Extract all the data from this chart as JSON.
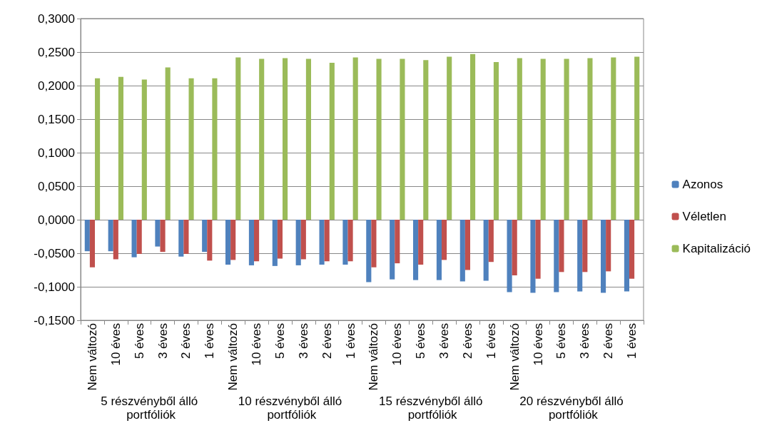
{
  "chart_data": {
    "type": "bar",
    "categories": [
      "Nem változó",
      "10 éves",
      "5 éves",
      "3 éves",
      "2 éves",
      "1 éves",
      "Nem változó",
      "10 éves",
      "5 éves",
      "3 éves",
      "2 éves",
      "1 éves",
      "Nem változó",
      "10 éves",
      "5 éves",
      "3 éves",
      "2 éves",
      "1 éves",
      "Nem változó",
      "10 éves",
      "5 éves",
      "3 éves",
      "2 éves",
      "1 éves"
    ],
    "annotations": [
      "5 részvényből álló portfóliók",
      "10 részvényből álló portfóliók",
      "15 részvényből álló portfóliók",
      "20 részvényből álló portfóliók"
    ],
    "series": [
      {
        "name": "Azonos",
        "color": "#4f81bd",
        "values": [
          -0.047,
          -0.047,
          -0.056,
          -0.04,
          -0.055,
          -0.048,
          -0.067,
          -0.068,
          -0.069,
          -0.068,
          -0.067,
          -0.067,
          -0.093,
          -0.089,
          -0.09,
          -0.09,
          -0.092,
          -0.091,
          -0.108,
          -0.109,
          -0.108,
          -0.107,
          -0.109,
          -0.107
        ]
      },
      {
        "name": "Véletlen",
        "color": "#c0504d",
        "values": [
          -0.071,
          -0.059,
          -0.051,
          -0.048,
          -0.051,
          -0.061,
          -0.06,
          -0.062,
          -0.058,
          -0.059,
          -0.062,
          -0.062,
          -0.071,
          -0.065,
          -0.067,
          -0.06,
          -0.075,
          -0.063,
          -0.083,
          -0.088,
          -0.078,
          -0.078,
          -0.077,
          -0.088
        ]
      },
      {
        "name": "Kapitalizáció",
        "color": "#9bbb59",
        "values": [
          0.211,
          0.213,
          0.209,
          0.227,
          0.211,
          0.211,
          0.242,
          0.24,
          0.241,
          0.24,
          0.234,
          0.242,
          0.24,
          0.24,
          0.238,
          0.243,
          0.247,
          0.235,
          0.241,
          0.24,
          0.24,
          0.241,
          0.242,
          0.243
        ]
      }
    ],
    "ylim": [
      -0.15,
      0.3
    ],
    "yticks": [
      {
        "value": -0.15,
        "label": "-0,1500"
      },
      {
        "value": -0.1,
        "label": "-0,1000"
      },
      {
        "value": -0.05,
        "label": "-0,0500"
      },
      {
        "value": 0,
        "label": "0,0000"
      },
      {
        "value": 0.05,
        "label": "0,0500"
      },
      {
        "value": 0.1,
        "label": "0,1000"
      },
      {
        "value": 0.15,
        "label": "0,1500"
      },
      {
        "value": 0.2,
        "label": "0,2000"
      },
      {
        "value": 0.25,
        "label": "0,2500"
      },
      {
        "value": 0.3,
        "label": "0,3000"
      }
    ],
    "grid": "y",
    "legend": "right"
  }
}
